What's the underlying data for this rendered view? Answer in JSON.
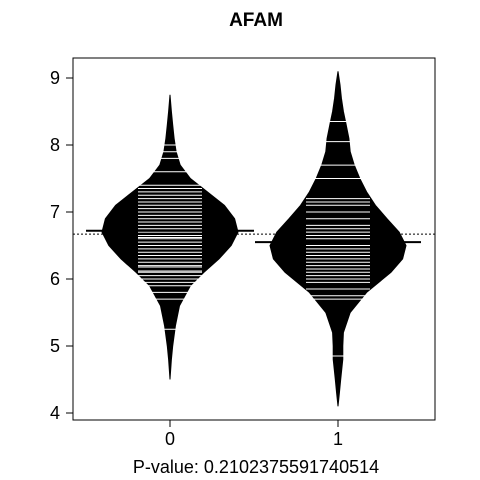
{
  "chart_data": {
    "type": "beanplot",
    "title": "AFAM",
    "xlabel": "P-value: 0.2102375591740514",
    "ylabel": "",
    "categories": [
      "0",
      "1"
    ],
    "ylim": [
      4,
      9
    ],
    "yticks": [
      "4",
      "5",
      "6",
      "7",
      "8",
      "9"
    ],
    "overall_mean": 6.67,
    "colors": {
      "bean": "#000000",
      "beanline": "#ffffff",
      "background": "#ffffff"
    },
    "beans": [
      {
        "category": "0",
        "mean": 6.72,
        "density": [
          [
            4.5,
            0.0
          ],
          [
            4.8,
            0.02
          ],
          [
            5.0,
            0.04
          ],
          [
            5.3,
            0.08
          ],
          [
            5.6,
            0.14
          ],
          [
            5.9,
            0.3
          ],
          [
            6.1,
            0.5
          ],
          [
            6.3,
            0.72
          ],
          [
            6.5,
            0.9
          ],
          [
            6.7,
            1.0
          ],
          [
            6.9,
            0.95
          ],
          [
            7.1,
            0.8
          ],
          [
            7.3,
            0.55
          ],
          [
            7.5,
            0.3
          ],
          [
            7.7,
            0.15
          ],
          [
            7.9,
            0.09
          ],
          [
            8.1,
            0.06
          ],
          [
            8.3,
            0.04
          ],
          [
            8.5,
            0.02
          ],
          [
            8.75,
            0.0
          ]
        ],
        "values": [
          5.25,
          5.7,
          5.8,
          5.9,
          5.95,
          6.0,
          6.05,
          6.1,
          6.12,
          6.18,
          6.2,
          6.25,
          6.3,
          6.35,
          6.4,
          6.45,
          6.5,
          6.55,
          6.6,
          6.62,
          6.65,
          6.7,
          6.72,
          6.75,
          6.8,
          6.85,
          6.9,
          6.95,
          7.0,
          7.05,
          7.1,
          7.15,
          7.2,
          7.25,
          7.3,
          7.35,
          7.4,
          7.6,
          7.8,
          7.9,
          8.0
        ]
      },
      {
        "category": "1",
        "mean": 6.55,
        "density": [
          [
            4.1,
            0.0
          ],
          [
            4.3,
            0.02
          ],
          [
            4.5,
            0.04
          ],
          [
            4.8,
            0.07
          ],
          [
            5.0,
            0.07
          ],
          [
            5.2,
            0.08
          ],
          [
            5.5,
            0.18
          ],
          [
            5.8,
            0.42
          ],
          [
            6.1,
            0.78
          ],
          [
            6.3,
            0.95
          ],
          [
            6.5,
            1.0
          ],
          [
            6.7,
            0.9
          ],
          [
            6.9,
            0.72
          ],
          [
            7.1,
            0.55
          ],
          [
            7.3,
            0.42
          ],
          [
            7.5,
            0.32
          ],
          [
            7.7,
            0.24
          ],
          [
            7.9,
            0.18
          ],
          [
            8.1,
            0.16
          ],
          [
            8.3,
            0.12
          ],
          [
            8.5,
            0.08
          ],
          [
            8.7,
            0.05
          ],
          [
            8.9,
            0.03
          ],
          [
            9.1,
            0.0
          ]
        ],
        "values": [
          4.85,
          5.7,
          5.75,
          5.85,
          5.95,
          6.0,
          6.05,
          6.1,
          6.15,
          6.2,
          6.25,
          6.3,
          6.35,
          6.4,
          6.45,
          6.5,
          6.55,
          6.6,
          6.65,
          6.7,
          6.75,
          6.8,
          6.9,
          7.0,
          7.1,
          7.15,
          7.2,
          7.5,
          7.7,
          8.05,
          8.35
        ]
      }
    ]
  }
}
